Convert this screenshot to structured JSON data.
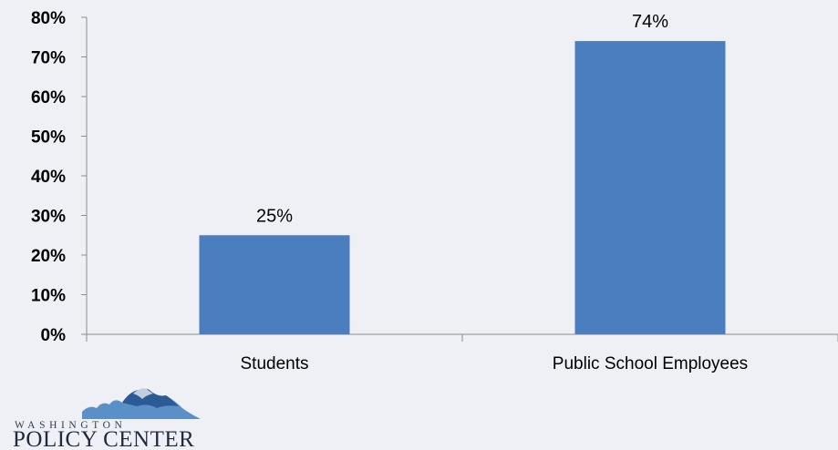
{
  "chart_data": {
    "type": "bar",
    "categories": [
      "Students",
      "Public School Employees"
    ],
    "values": [
      25,
      74
    ],
    "data_labels": [
      "25%",
      "74%"
    ],
    "title": "",
    "xlabel": "",
    "ylabel": "",
    "ylim": [
      0,
      80
    ],
    "y_ticks": [
      {
        "value": 0,
        "label": "0%"
      },
      {
        "value": 10,
        "label": "10%"
      },
      {
        "value": 20,
        "label": "20%"
      },
      {
        "value": 30,
        "label": "30%"
      },
      {
        "value": 40,
        "label": "40%"
      },
      {
        "value": 50,
        "label": "50%"
      },
      {
        "value": 60,
        "label": "60%"
      },
      {
        "value": 70,
        "label": "70%"
      },
      {
        "value": 80,
        "label": "80%"
      }
    ],
    "grid": false,
    "legend": "none",
    "bar_color": "#4a7ebf",
    "axis_color": "#8c8c8c"
  },
  "logo": {
    "line1": "WASHINGTON",
    "line2": "POLICY CENTER",
    "icon": "mountain-logo-icon"
  }
}
